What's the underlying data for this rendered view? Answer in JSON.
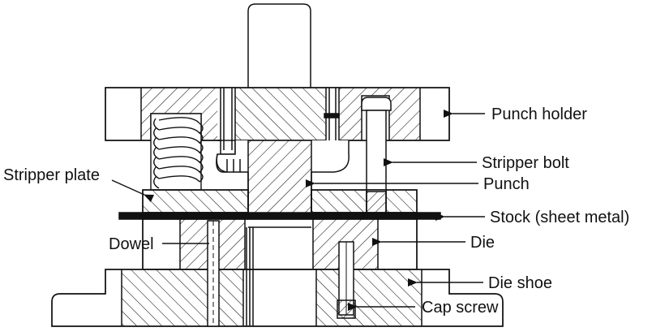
{
  "diagram": {
    "labels": {
      "punch_holder": "Punch holder",
      "stripper_bolt": "Stripper bolt",
      "stripper_plate": "Stripper plate",
      "punch": "Punch",
      "stock": "Stock (sheet metal)",
      "dowel": "Dowel",
      "die": "Die",
      "die_shoe": "Die shoe",
      "cap_screw": "Cap screw"
    },
    "colors": {
      "line": "#111111",
      "background": "#ffffff",
      "stock": "#111111"
    }
  }
}
